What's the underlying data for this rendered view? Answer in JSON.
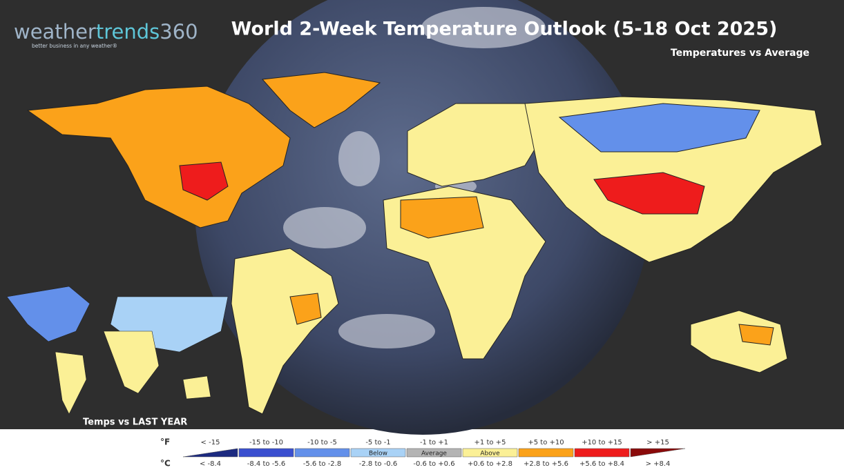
{
  "logo": {
    "parts": [
      "weather",
      "trends",
      "360"
    ],
    "tagline": "better business in any weather®"
  },
  "header": {
    "title": "World 2-Week Temperature Outlook (5-18 Oct 2025)",
    "subtitle": "Temperatures vs Average"
  },
  "inset": {
    "label": "Temps vs LAST YEAR"
  },
  "legend": {
    "f_unit": "°F",
    "c_unit": "°C",
    "items": [
      {
        "f": "< -15",
        "c": "< -8.4",
        "color": "#1c2a80"
      },
      {
        "f": "-15 to -10",
        "c": "-8.4 to -5.6",
        "color": "#3a4fcf"
      },
      {
        "f": "-10 to -5",
        "c": "-5.6 to -2.8",
        "color": "#6390ea"
      },
      {
        "f": "-5 to -1",
        "c": "-2.8 to -0.6",
        "color": "#a9d2f6",
        "label": "Below"
      },
      {
        "f": "-1 to +1",
        "c": "-0.6 to +0.6",
        "color": "#b4b4b4",
        "label": "Average"
      },
      {
        "f": "+1 to +5",
        "c": "+0.6 to +2.8",
        "color": "#fbf096",
        "label": "Above"
      },
      {
        "f": "+5 to +10",
        "c": "+2.8 to +5.6",
        "color": "#fba21a"
      },
      {
        "f": "+10 to +15",
        "c": "+5.6 to +8.4",
        "color": "#ee1c1c"
      },
      {
        "f": "> +15",
        "c": "> +8.4",
        "color": "#8a0a0a"
      }
    ]
  }
}
